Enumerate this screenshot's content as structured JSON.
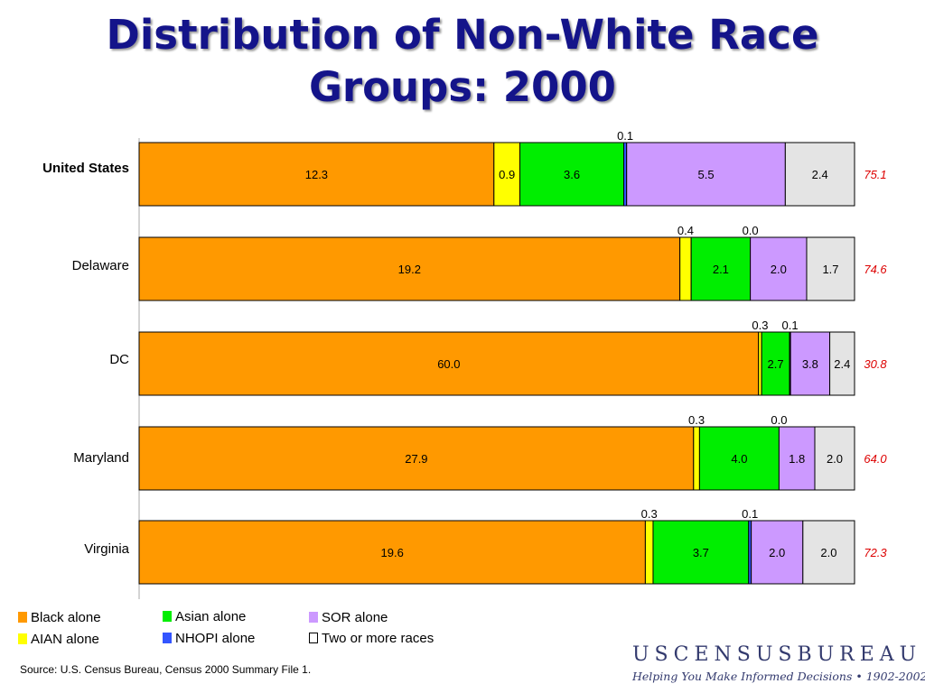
{
  "title_line1": "Distribution of Non-White Race",
  "title_line2": "Groups: 2000",
  "chart_data": {
    "type": "bar",
    "orientation": "horizontal",
    "stacked": true,
    "categories": [
      "United States",
      "Delaware",
      "DC",
      "Maryland",
      "Virginia"
    ],
    "series": [
      {
        "name": "Black alone",
        "color": "#ff9900",
        "values": [
          12.3,
          19.2,
          60.0,
          27.9,
          19.6
        ]
      },
      {
        "name": "AIAN alone",
        "color": "#ffff00",
        "values": [
          0.9,
          0.4,
          0.3,
          0.3,
          0.3
        ]
      },
      {
        "name": "Asian alone",
        "color": "#00ee00",
        "values": [
          3.6,
          2.1,
          2.7,
          4.0,
          3.7
        ]
      },
      {
        "name": "NHOPI alone",
        "color": "#3355ff",
        "values": [
          0.1,
          0.0,
          0.1,
          0.0,
          0.1
        ]
      },
      {
        "name": "SOR alone",
        "color": "#cc99ff",
        "values": [
          5.5,
          2.0,
          3.8,
          1.8,
          2.0
        ]
      },
      {
        "name": "Two or more races",
        "color": "#e4e4e4",
        "values": [
          2.4,
          1.7,
          2.4,
          2.0,
          2.0
        ]
      }
    ],
    "white_alone_labels": [
      "75.1",
      "74.6",
      "30.8",
      "64.0",
      "72.3"
    ],
    "bold_category": "United States"
  },
  "legend": [
    {
      "label": "Black alone",
      "color": "#ff9900"
    },
    {
      "label": "AIAN alone",
      "color": "#ffff00"
    },
    {
      "label": "Asian alone",
      "color": "#00ee00"
    },
    {
      "label": "NHOPI alone",
      "color": "#3355ff"
    },
    {
      "label": "SOR alone",
      "color": "#cc99ff"
    },
    {
      "label": "Two or more races",
      "color": "#ffffff"
    }
  ],
  "source": "Source:  U.S. Census Bureau, Census 2000 Summary File 1.",
  "logo": {
    "name": "USCENSUSBUREAU",
    "tagline": "Helping You Make Informed Decisions • 1902-2002"
  }
}
